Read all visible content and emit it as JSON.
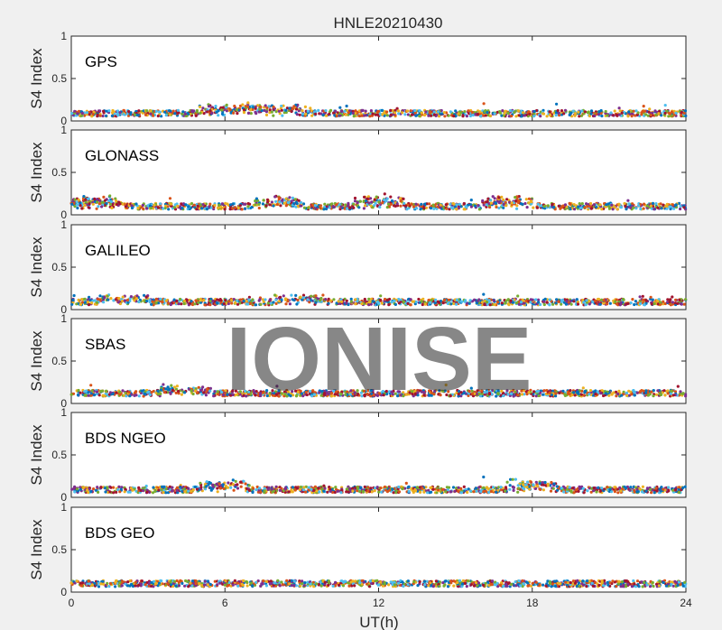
{
  "chart_data": {
    "type": "scatter",
    "title": "HNLE20210430",
    "xlabel": "UT(h)",
    "xlim": [
      0,
      24
    ],
    "xticks": [
      "0",
      "6",
      "12",
      "18",
      "24"
    ],
    "ylabel": "S4 Index",
    "ylim": [
      0,
      1
    ],
    "yticks": [
      "0",
      "0.5",
      "1"
    ],
    "watermark": "IONISE",
    "grid": false,
    "series_colors": [
      "#0072BD",
      "#D95319",
      "#EDB120",
      "#7E2F8E",
      "#77AC30",
      "#4DBEEE",
      "#A2142F"
    ],
    "panels": [
      {
        "label": "GPS",
        "baseline_s4": 0.09,
        "max_s4": 0.22,
        "peak_hours": [
          6,
          8
        ]
      },
      {
        "label": "GLONASS",
        "baseline_s4": 0.1,
        "max_s4": 0.25,
        "peak_hours": [
          1,
          8,
          12,
          17
        ]
      },
      {
        "label": "GALILEO",
        "baseline_s4": 0.09,
        "max_s4": 0.18,
        "peak_hours": [
          2,
          9
        ]
      },
      {
        "label": "SBAS",
        "baseline_s4": 0.12,
        "max_s4": 0.24,
        "peak_hours": [
          4.5
        ]
      },
      {
        "label": "BDS NGEO",
        "baseline_s4": 0.09,
        "max_s4": 0.24,
        "peak_hours": [
          6,
          18
        ]
      },
      {
        "label": "BDS GEO",
        "baseline_s4": 0.1,
        "max_s4": 0.14,
        "peak_hours": []
      }
    ]
  }
}
